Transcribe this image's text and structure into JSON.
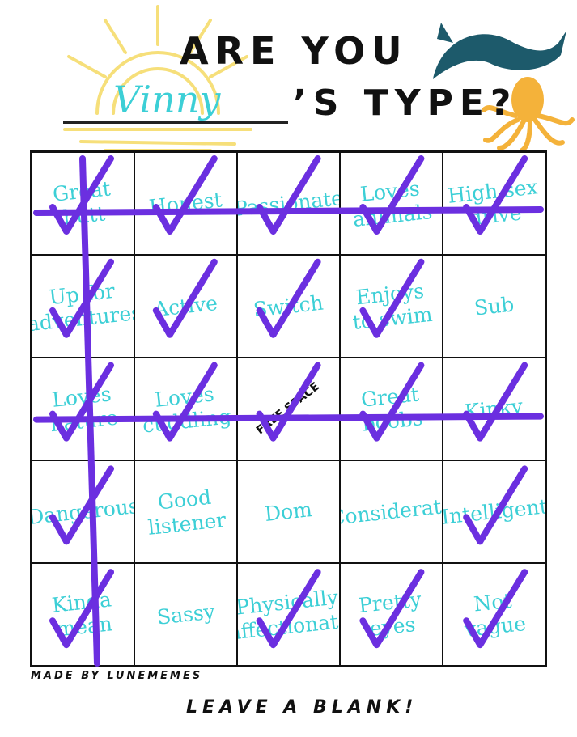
{
  "header": {
    "title_line1": "ARE YOU",
    "name": "Vinny",
    "title_line2": "’S TYPE?"
  },
  "decorations": [
    "sun-icon",
    "whale-icon",
    "octopus-icon"
  ],
  "colors": {
    "text_cells": "#3ccfd6",
    "marker": "#6b2fe0",
    "sun": "#f6df7a",
    "whale": "#1d5a6b",
    "octopus": "#f4b23a"
  },
  "grid": {
    "cells": [
      {
        "label": "Great butt",
        "checked": true
      },
      {
        "label": "Honest",
        "checked": true
      },
      {
        "label": "Passionate",
        "checked": true
      },
      {
        "label": "Loves animals",
        "checked": true
      },
      {
        "label": "High sex drive",
        "checked": true
      },
      {
        "label": "Up for adventures",
        "checked": true
      },
      {
        "label": "Active",
        "checked": true
      },
      {
        "label": "Switch",
        "checked": true
      },
      {
        "label": "Enjoys to swim",
        "checked": true
      },
      {
        "label": "Sub",
        "checked": false
      },
      {
        "label": "Loves nature",
        "checked": true
      },
      {
        "label": "Loves cuddling",
        "checked": true
      },
      {
        "label": "FREE SPACE",
        "checked": true,
        "free": true
      },
      {
        "label": "Great boobs",
        "checked": true
      },
      {
        "label": "Kinky",
        "checked": true
      },
      {
        "label": "Dangerous",
        "checked": true
      },
      {
        "label": "Good listener",
        "checked": false
      },
      {
        "label": "Dom",
        "checked": false
      },
      {
        "label": "Considerate",
        "checked": false
      },
      {
        "label": "Intelligent",
        "checked": true
      },
      {
        "label": "Kinda mean",
        "checked": true
      },
      {
        "label": "Sassy",
        "checked": false
      },
      {
        "label": "Physically affectionate",
        "checked": true
      },
      {
        "label": "Pretty eyes",
        "checked": true
      },
      {
        "label": "Not vague",
        "checked": true
      }
    ],
    "bingo_lines": [
      {
        "type": "row",
        "index": 0
      },
      {
        "type": "row",
        "index": 2
      },
      {
        "type": "column",
        "index": 0
      }
    ]
  },
  "footer": {
    "credit": "MADE BY LUNEMEMES",
    "instruction": "LEAVE A BLANK!"
  }
}
